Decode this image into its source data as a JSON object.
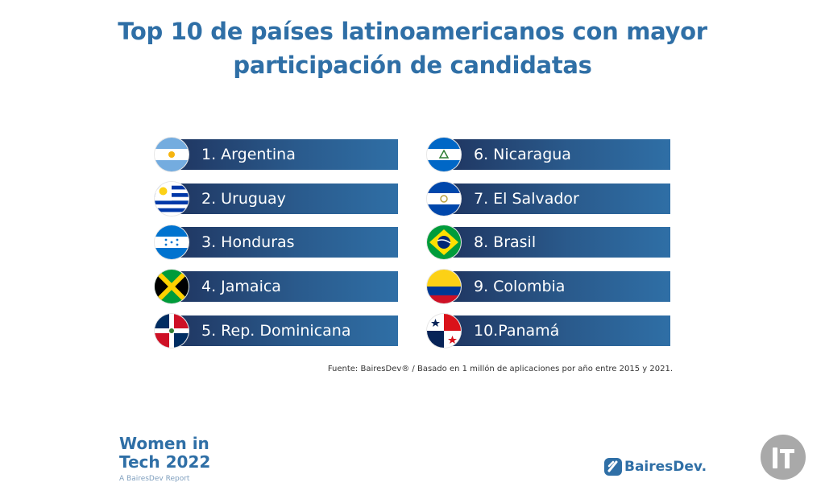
{
  "title": {
    "line1": "Top 10 de países latinoamericanos con mayor",
    "line2": "participación de candidatas"
  },
  "ranking": [
    {
      "label": "1.  Argentina",
      "flag": "argentina-flag-icon"
    },
    {
      "label": "2.  Uruguay",
      "flag": "uruguay-flag-icon"
    },
    {
      "label": "3.  Honduras",
      "flag": "honduras-flag-icon"
    },
    {
      "label": "4.  Jamaica",
      "flag": "jamaica-flag-icon"
    },
    {
      "label": "5.  Rep. Dominicana",
      "flag": "dominican-republic-flag-icon"
    },
    {
      "label": "6.  Nicaragua",
      "flag": "nicaragua-flag-icon"
    },
    {
      "label": "7.  El Salvador",
      "flag": "el-salvador-flag-icon"
    },
    {
      "label": "8.  Brasil",
      "flag": "brazil-flag-icon"
    },
    {
      "label": "9.  Colombia",
      "flag": "colombia-flag-icon"
    },
    {
      "label": "10.Panamá",
      "flag": "panama-flag-icon"
    }
  ],
  "source": "Fuente: BairesDev® / Basado en 1 millón de aplicaciones por año entre 2015 y 2021.",
  "report": {
    "line1": "Women in",
    "line2": "Tech 2022",
    "subtitle": "A BairesDev Report"
  },
  "brand": "BairesDev.",
  "colors": {
    "title": "#2f6fa6",
    "bar_dark": "#1f3560",
    "bar_light": "#2f6fa6"
  }
}
